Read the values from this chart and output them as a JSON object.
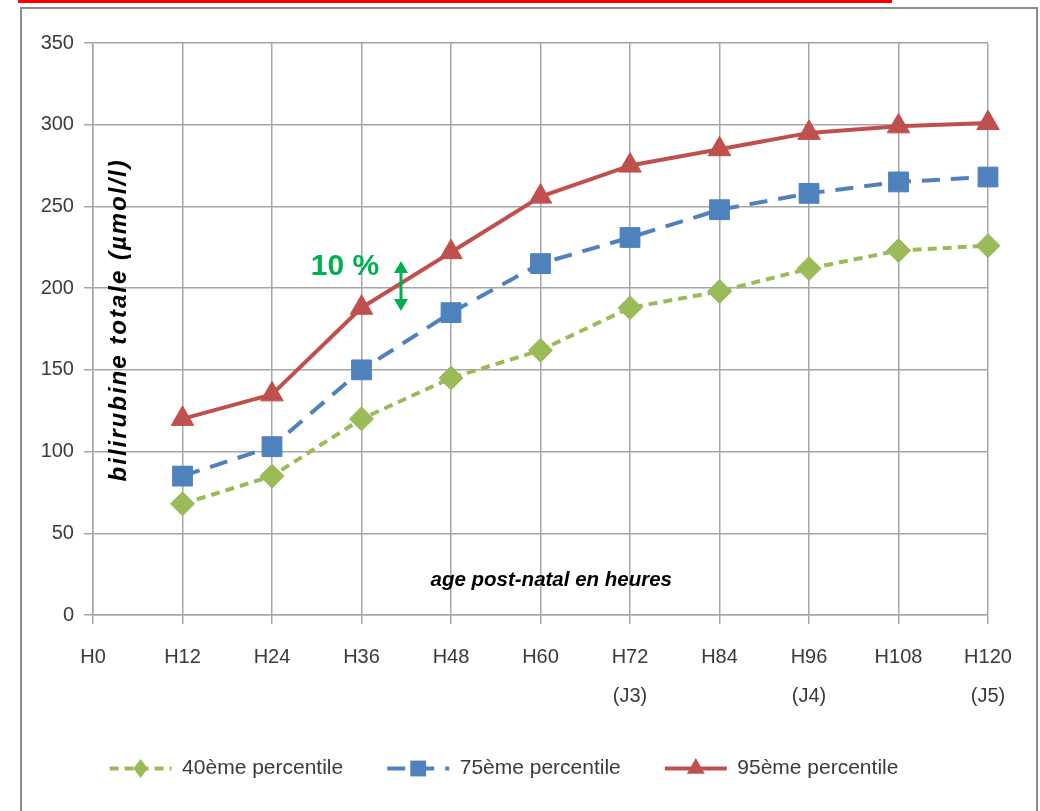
{
  "chart_data": {
    "type": "line",
    "ylabel": "bilirubine totale (µmol/l)",
    "xlabel": "age post-natal en heures",
    "categories": [
      "H0",
      "H12",
      "H24",
      "H36",
      "H48",
      "H60",
      "H72 (J3)",
      "H84",
      "H96 (J4)",
      "H108",
      "H120 (J5)"
    ],
    "series": [
      {
        "name": "40ème percentile",
        "color": "#9bbb59",
        "marker": "diamond",
        "line_style": "dotted",
        "values": [
          null,
          68,
          85,
          120,
          145,
          162,
          188,
          198,
          212,
          223,
          226
        ]
      },
      {
        "name": "75ème percentile",
        "color": "#4f81bd",
        "marker": "square",
        "line_style": "dashed",
        "values": [
          null,
          85,
          103,
          150,
          185,
          215,
          231,
          248,
          258,
          265,
          268
        ]
      },
      {
        "name": "95ème percentile",
        "color": "#c0504d",
        "marker": "triangle",
        "line_style": "solid",
        "values": [
          null,
          120,
          135,
          188,
          222,
          256,
          275,
          285,
          295,
          299,
          301
        ]
      }
    ],
    "ylim": [
      0,
      350
    ],
    "yticks": [
      0,
      50,
      100,
      150,
      200,
      250,
      300,
      350
    ],
    "grid": true,
    "legend": "bottom",
    "annotations": [
      "10 %"
    ]
  }
}
